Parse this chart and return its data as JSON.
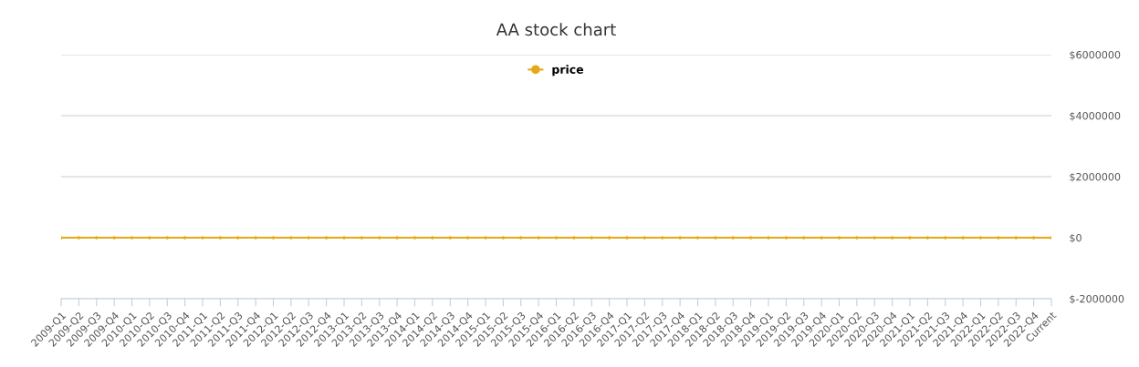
{
  "chart_data": {
    "type": "line",
    "title": "AA stock chart",
    "categories": [
      "2009-Q1",
      "2009-Q2",
      "2009-Q3",
      "2009-Q4",
      "2010-Q1",
      "2010-Q2",
      "2010-Q3",
      "2010-Q4",
      "2011-Q1",
      "2011-Q2",
      "2011-Q3",
      "2011-Q4",
      "2012-Q1",
      "2012-Q2",
      "2012-Q3",
      "2012-Q4",
      "2013-Q1",
      "2013-Q2",
      "2013-Q3",
      "2013-Q4",
      "2014-Q1",
      "2014-Q2",
      "2014-Q3",
      "2014-Q4",
      "2015-Q1",
      "2015-Q2",
      "2015-Q3",
      "2015-Q4",
      "2016-Q1",
      "2016-Q2",
      "2016-Q3",
      "2016-Q4",
      "2017-Q1",
      "2017-Q2",
      "2017-Q3",
      "2017-Q4",
      "2018-Q1",
      "2018-Q2",
      "2018-Q3",
      "2018-Q4",
      "2019-Q1",
      "2019-Q2",
      "2019-Q3",
      "2019-Q4",
      "2020-Q1",
      "2020-Q2",
      "2020-Q3",
      "2020-Q4",
      "2021-Q1",
      "2021-Q2",
      "2021-Q3",
      "2021-Q4",
      "2022-Q1",
      "2022-Q2",
      "2022-Q3",
      "2022-Q4",
      "Current"
    ],
    "series": [
      {
        "name": "price",
        "color": "#e6a817",
        "values": [
          0,
          0,
          0,
          0,
          0,
          0,
          0,
          0,
          0,
          0,
          0,
          0,
          0,
          0,
          0,
          0,
          0,
          0,
          0,
          0,
          0,
          0,
          0,
          0,
          0,
          0,
          0,
          0,
          0,
          0,
          0,
          0,
          0,
          0,
          0,
          0,
          0,
          0,
          0,
          0,
          0,
          0,
          0,
          0,
          0,
          0,
          0,
          0,
          0,
          0,
          0,
          0,
          0,
          0,
          0,
          0,
          0
        ]
      }
    ],
    "ylim": [
      -2000000,
      6000000
    ],
    "yticks": [
      {
        "value": -2000000,
        "label": "$-2000000"
      },
      {
        "value": 0,
        "label": "$0"
      },
      {
        "value": 2000000,
        "label": "$2000000"
      },
      {
        "value": 4000000,
        "label": "$4000000"
      },
      {
        "value": 6000000,
        "label": "$6000000"
      }
    ],
    "grid": "y",
    "legend": "top",
    "marker": "circle",
    "line_style": "solid"
  }
}
